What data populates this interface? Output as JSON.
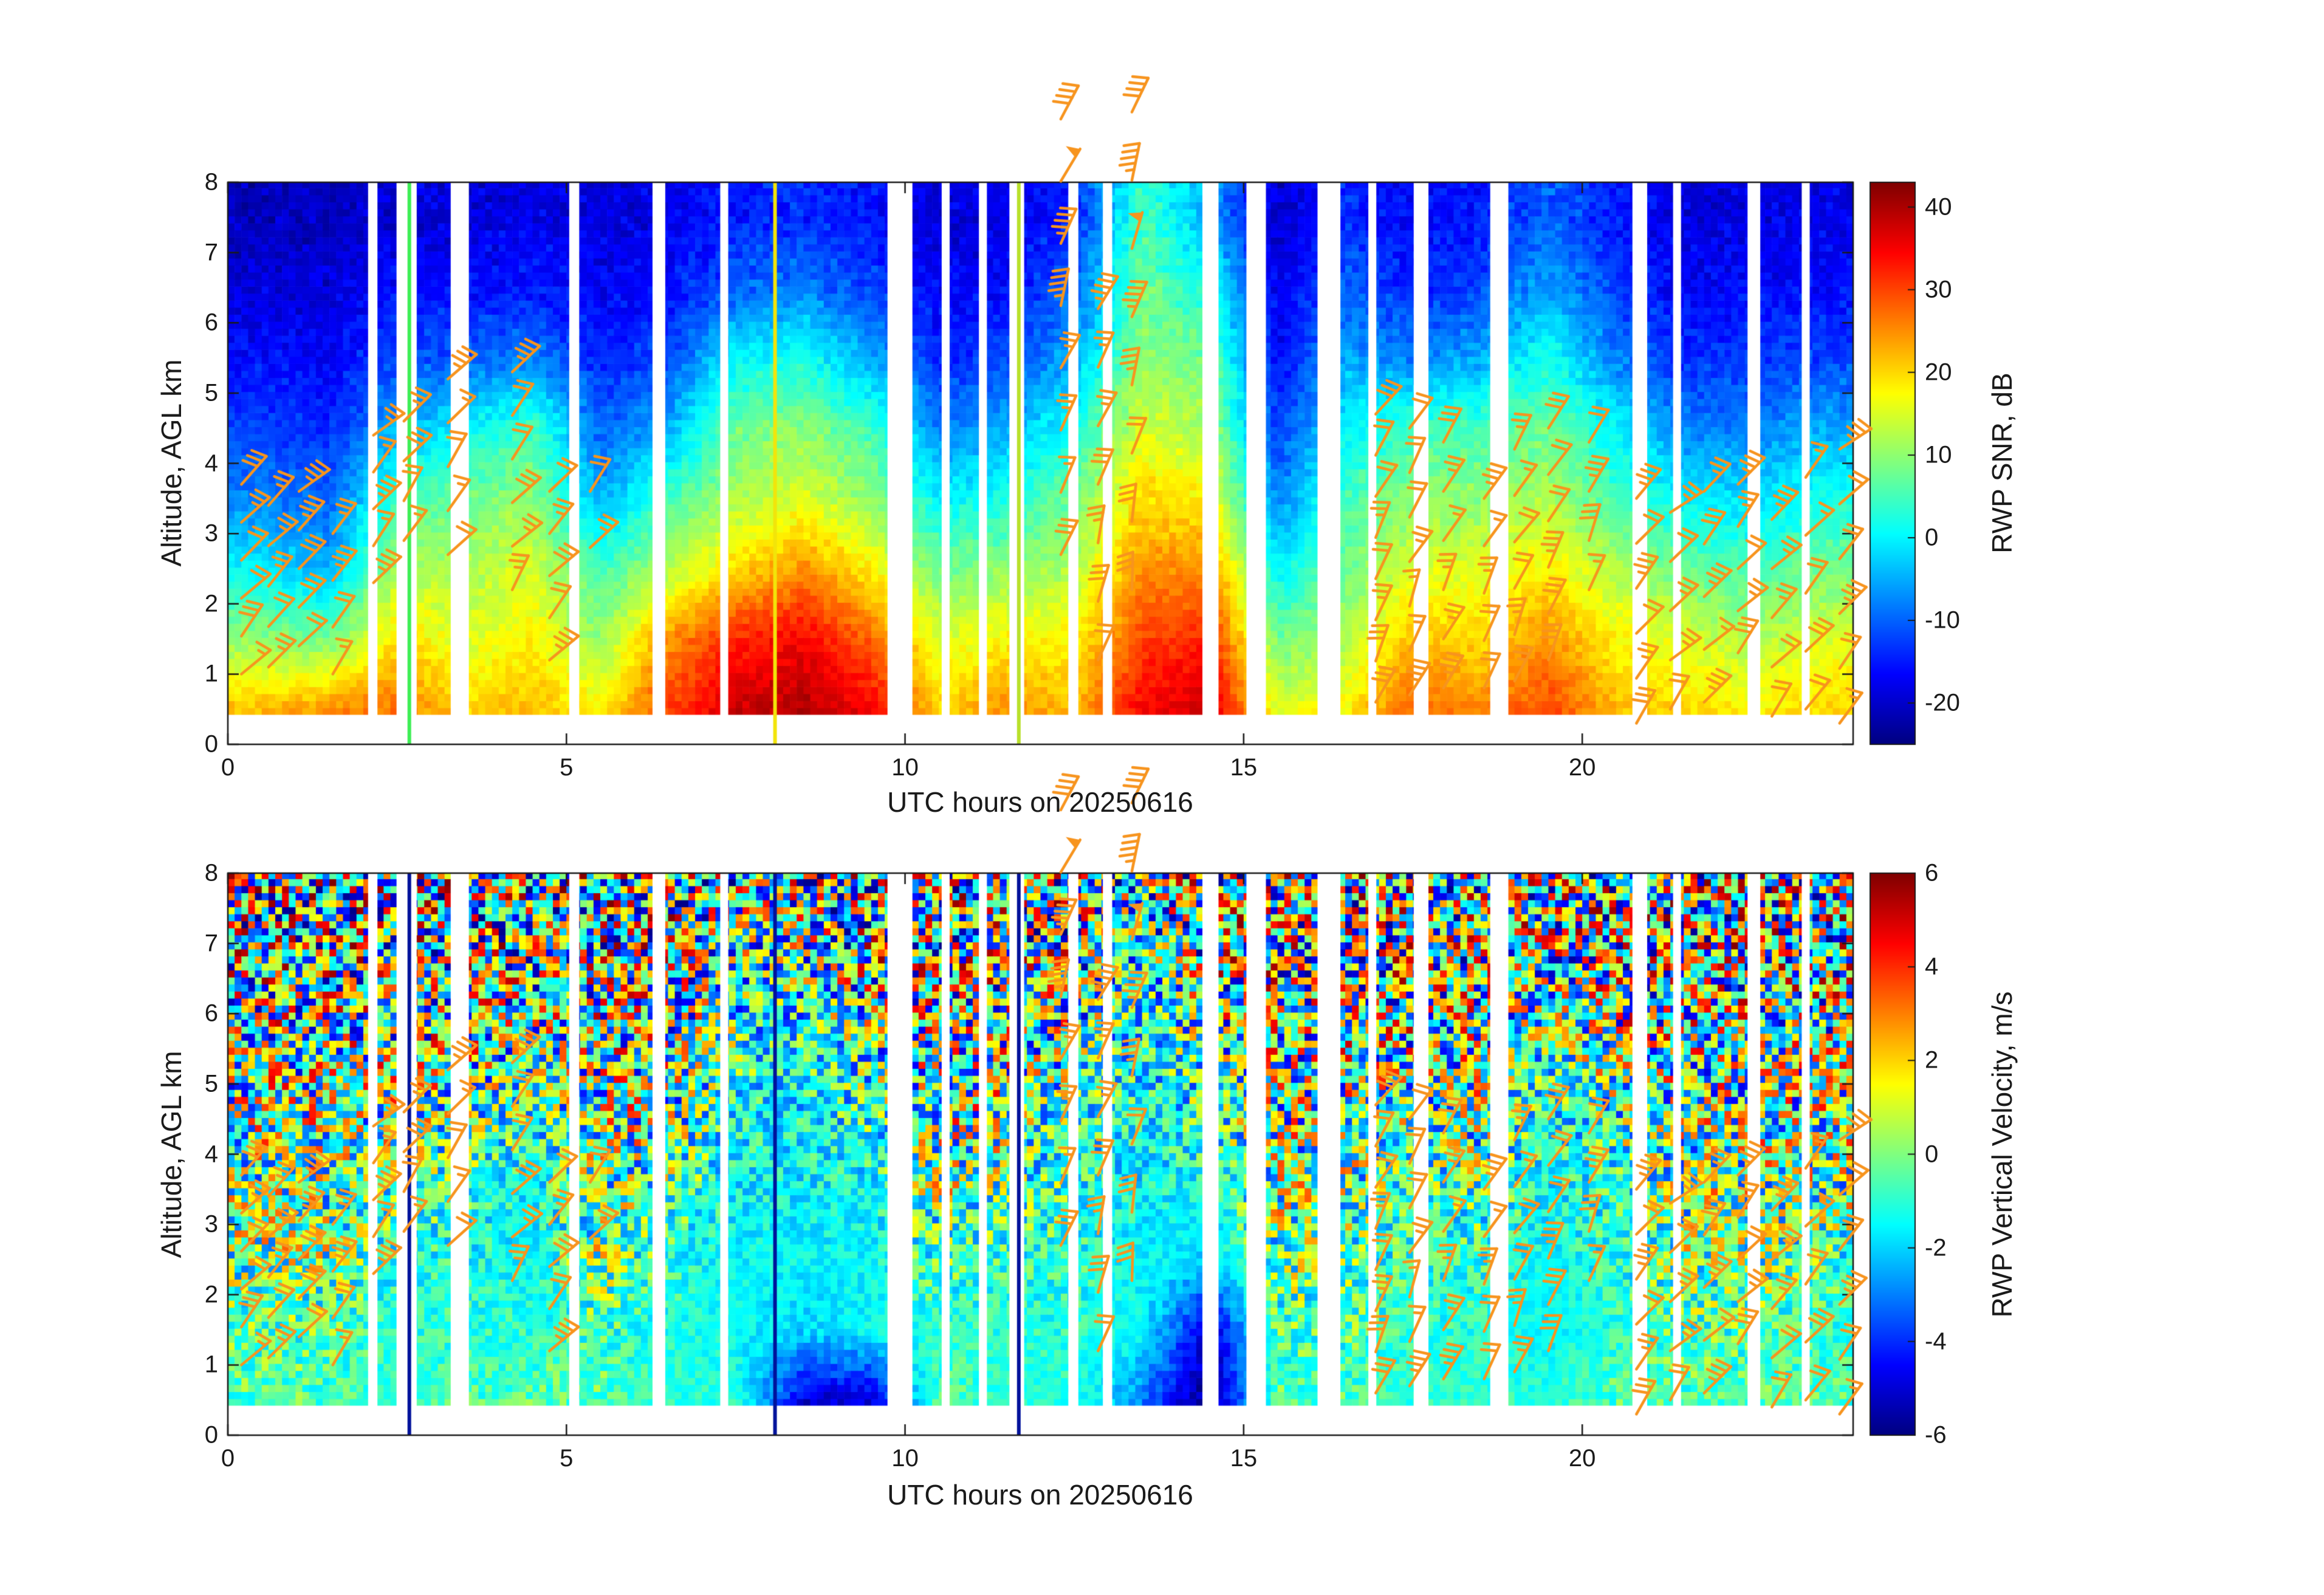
{
  "figure": {
    "date_label": "20250616",
    "background": "#ffffff"
  },
  "colors": {
    "barb": "#f7941e",
    "axis": "#1a1a1a",
    "gap": "#ffffff"
  },
  "panels": [
    {
      "key": "snr",
      "ylabel": "Altitude, AGL km",
      "xlabel": "UTC hours on 20250616",
      "xticks": [
        0,
        5,
        10,
        15,
        20
      ],
      "yticks": [
        0,
        1,
        2,
        3,
        4,
        5,
        6,
        7,
        8
      ],
      "xlim": [
        0,
        24
      ],
      "ylim": [
        0,
        8
      ],
      "colorbar": {
        "label": "RWP SNR, dB",
        "ticks": [
          40,
          30,
          20,
          10,
          0,
          -10,
          -20
        ],
        "clim": [
          -25,
          43
        ]
      }
    },
    {
      "key": "velocity",
      "ylabel": "Altitude, AGL km",
      "xlabel": "UTC hours on 20250616",
      "xticks": [
        0,
        5,
        10,
        15,
        20
      ],
      "yticks": [
        0,
        1,
        2,
        3,
        4,
        5,
        6,
        7,
        8
      ],
      "xlim": [
        0,
        24
      ],
      "ylim": [
        0,
        8
      ],
      "colorbar": {
        "label": "RWP Vertical Velocity, m/s",
        "ticks": [
          6,
          4,
          2,
          0,
          -2,
          -4,
          -6
        ],
        "clim": [
          -6,
          6
        ]
      }
    }
  ],
  "chart_data": [
    {
      "type": "heatmap",
      "name": "RWP SNR",
      "units": "dB",
      "xlabel": "UTC hours on 20250616",
      "ylabel": "Altitude, AGL km",
      "xlim": [
        0,
        24
      ],
      "ylim": [
        0,
        8
      ],
      "clim": [
        -25,
        43
      ],
      "data_alt_min_km": 0.42,
      "x_bin_centers_hours": [
        0.5,
        1.5,
        2.5,
        3.5,
        4.5,
        5.5,
        6.5,
        7.5,
        8.5,
        9.5,
        10.5,
        11.5,
        12.5,
        13.5,
        14.5,
        15.5,
        16.5,
        17.5,
        18.5,
        19.5,
        20.5,
        21.5,
        22.5,
        23.5
      ],
      "y_bin_centers_km": [
        0.5,
        1.5,
        2.5,
        3.5,
        4.5,
        5.5,
        6.5,
        7.5
      ],
      "values": [
        [
          22,
          25,
          27,
          20,
          22,
          18,
          30,
          38,
          40,
          35,
          20,
          25,
          22,
          35,
          38,
          15,
          18,
          28,
          25,
          30,
          22,
          20,
          18,
          20
        ],
        [
          10,
          8,
          20,
          15,
          18,
          10,
          25,
          32,
          35,
          28,
          15,
          18,
          18,
          30,
          32,
          8,
          12,
          22,
          20,
          25,
          18,
          15,
          12,
          15
        ],
        [
          0,
          -5,
          12,
          12,
          15,
          5,
          12,
          20,
          25,
          18,
          8,
          10,
          12,
          25,
          25,
          0,
          8,
          15,
          15,
          18,
          12,
          8,
          5,
          8
        ],
        [
          -8,
          -10,
          5,
          8,
          10,
          -5,
          5,
          12,
          15,
          10,
          0,
          2,
          8,
          20,
          18,
          -8,
          5,
          10,
          10,
          12,
          5,
          0,
          -2,
          2
        ],
        [
          -12,
          -14,
          -5,
          0,
          5,
          -10,
          -5,
          8,
          10,
          5,
          -8,
          -5,
          2,
          15,
          12,
          -12,
          0,
          5,
          5,
          8,
          0,
          -8,
          -8,
          -5
        ],
        [
          -16,
          -17,
          -12,
          -10,
          -8,
          -14,
          -12,
          0,
          2,
          -5,
          -14,
          -12,
          -5,
          10,
          8,
          -16,
          -5,
          -8,
          -5,
          2,
          -8,
          -14,
          -13,
          -12
        ],
        [
          -19,
          -19,
          -16,
          -16,
          -15,
          -17,
          -16,
          -10,
          -8,
          -12,
          -17,
          -16,
          -10,
          8,
          2,
          -18,
          -10,
          -14,
          -12,
          -5,
          -12,
          -17,
          -16,
          -16
        ],
        [
          -21,
          -21,
          -19,
          -19,
          -18,
          -19,
          -18,
          -15,
          -14,
          -16,
          -19,
          -18,
          -14,
          5,
          -5,
          -20,
          -14,
          -17,
          -15,
          -10,
          -15,
          -19,
          -18,
          -18
        ]
      ]
    },
    {
      "type": "heatmap",
      "name": "RWP Vertical Velocity",
      "units": "m/s",
      "xlabel": "UTC hours on 20250616",
      "ylabel": "Altitude, AGL km",
      "xlim": [
        0,
        24
      ],
      "ylim": [
        0,
        8
      ],
      "clim": [
        -6,
        6
      ],
      "data_alt_min_km": 0.42,
      "x_bin_centers_hours": [
        0.5,
        1.5,
        2.5,
        3.5,
        4.5,
        5.5,
        6.5,
        7.5,
        8.5,
        9.5,
        10.5,
        11.5,
        12.5,
        13.5,
        14.5,
        15.5,
        16.5,
        17.5,
        18.5,
        19.5,
        20.5,
        21.5,
        22.5,
        23.5
      ],
      "y_bin_centers_km": [
        0.5,
        1.5,
        2.5,
        3.5,
        4.5,
        5.5,
        6.5,
        7.5
      ],
      "values": [
        [
          -0.5,
          -0.5,
          -1,
          -0.5,
          -0.5,
          -0.5,
          -1,
          -1,
          -5,
          -5,
          -0.5,
          -1,
          -1,
          -3,
          -6,
          -0.5,
          -0.5,
          -1,
          -1,
          -1,
          -0.5,
          -0.5,
          -0.5,
          -0.5
        ],
        [
          -0.5,
          -0.5,
          -1,
          -1,
          -1,
          -0.5,
          -1,
          -1.5,
          -2,
          -1.5,
          -1,
          -1,
          -1,
          -1.5,
          -5,
          -0.5,
          -0.5,
          -1,
          -1,
          -1.5,
          -1,
          -0.5,
          -0.5,
          -1
        ],
        [
          0,
          0,
          -1,
          -1,
          -1.5,
          0,
          -1,
          -1.5,
          -1.5,
          -1.5,
          -0.5,
          -1,
          -1,
          -1.5,
          -2,
          0,
          -0.5,
          -1,
          -1,
          -1.5,
          -1,
          0,
          0,
          -0.5
        ],
        [
          0,
          0,
          -0.5,
          -1,
          -1.5,
          0,
          -0.5,
          -1.5,
          -1.5,
          -1.5,
          0,
          -0.5,
          -1,
          -1.5,
          -1.5,
          0,
          0,
          -1,
          -0.5,
          -1.5,
          -1,
          0,
          0,
          0
        ],
        [
          0,
          0,
          0,
          -0.5,
          -1,
          0,
          0,
          -1.5,
          -1.5,
          -1,
          0,
          0,
          -1,
          -1.5,
          -1,
          0,
          0,
          -0.5,
          0,
          -1.5,
          -0.5,
          0,
          0,
          0
        ],
        [
          0,
          0,
          0,
          0,
          -0.5,
          0,
          0,
          -1,
          -1.5,
          -0.5,
          0,
          0,
          -0.5,
          -1.5,
          -0.5,
          0,
          0,
          0,
          0,
          -1,
          0,
          0,
          0,
          0
        ],
        [
          0,
          0,
          0,
          0,
          0,
          0,
          0,
          -1,
          -1,
          0,
          0,
          0,
          0,
          -1.5,
          0,
          0,
          0,
          0,
          0,
          -0.5,
          0,
          0,
          0,
          0
        ],
        [
          0,
          0,
          0,
          0,
          0,
          0,
          0,
          -0.5,
          -0.5,
          0,
          0,
          0,
          0,
          -1,
          0,
          0,
          0,
          0,
          0,
          0,
          0,
          0,
          0,
          0
        ]
      ]
    }
  ],
  "data_gaps_hours": [
    [
      2.08,
      2.2
    ],
    [
      2.5,
      2.78
    ],
    [
      3.3,
      3.55
    ],
    [
      5.05,
      5.18
    ],
    [
      6.28,
      6.45
    ],
    [
      7.28,
      7.38
    ],
    [
      9.75,
      10.1
    ],
    [
      10.55,
      10.65
    ],
    [
      11.1,
      11.2
    ],
    [
      11.55,
      11.75
    ],
    [
      12.42,
      12.55
    ],
    [
      12.93,
      13.05
    ],
    [
      14.4,
      14.62
    ],
    [
      15.05,
      15.32
    ],
    [
      16.1,
      16.42
    ],
    [
      16.85,
      16.95
    ],
    [
      17.52,
      17.72
    ],
    [
      18.65,
      18.9
    ],
    [
      20.75,
      20.95
    ],
    [
      21.35,
      21.45
    ],
    [
      22.45,
      22.62
    ],
    [
      23.25,
      23.35
    ]
  ],
  "event_lines": {
    "snr": [
      {
        "t": 2.68,
        "color": "#3dee55"
      },
      {
        "t": 8.08,
        "color": "#f2e40a"
      },
      {
        "t": 11.68,
        "color": "#b8e02a"
      }
    ],
    "velocity": [
      {
        "t": 2.68,
        "color": "#00129b"
      },
      {
        "t": 8.08,
        "color": "#00129b"
      },
      {
        "t": 11.68,
        "color": "#00129b"
      }
    ]
  },
  "wind_barbs": {
    "color": "#f7941e",
    "columns": [
      {
        "t": 0.2,
        "a0": 1.0,
        "a1": 3.7,
        "n": 6
      },
      {
        "t": 0.6,
        "a0": 1.1,
        "a1": 3.4,
        "n": 5
      },
      {
        "t": 1.05,
        "a0": 1.4,
        "a1": 3.6,
        "n": 5
      },
      {
        "t": 1.55,
        "a0": 1.0,
        "a1": 3.0,
        "n": 4
      },
      {
        "t": 2.15,
        "a0": 2.3,
        "a1": 4.4,
        "n": 5
      },
      {
        "t": 2.6,
        "a0": 2.9,
        "a1": 4.6,
        "n": 4
      },
      {
        "t": 3.25,
        "a0": 2.7,
        "a1": 5.2,
        "n": 5
      },
      {
        "t": 4.2,
        "a0": 2.2,
        "a1": 5.3,
        "n": 6
      },
      {
        "t": 4.75,
        "a0": 1.2,
        "a1": 3.6,
        "n": 5
      },
      {
        "t": 5.35,
        "a0": 2.8,
        "a1": 3.6,
        "n": 2
      },
      {
        "t": 12.3,
        "a0": 2.7,
        "a1": 8.9,
        "n": 8
      },
      {
        "t": 12.85,
        "a0": 1.2,
        "a1": 6.2,
        "n": 7
      },
      {
        "t": 13.35,
        "a0": 2.2,
        "a1": 9.0,
        "n": 8
      },
      {
        "t": 16.95,
        "a0": 0.6,
        "a1": 4.7,
        "n": 8
      },
      {
        "t": 17.45,
        "a0": 0.7,
        "a1": 4.5,
        "n": 7
      },
      {
        "t": 17.95,
        "a0": 0.8,
        "a1": 4.3,
        "n": 6
      },
      {
        "t": 18.55,
        "a0": 0.8,
        "a1": 3.5,
        "n": 5
      },
      {
        "t": 19.0,
        "a0": 0.9,
        "a1": 4.2,
        "n": 6
      },
      {
        "t": 19.5,
        "a0": 1.2,
        "a1": 4.5,
        "n": 6
      },
      {
        "t": 20.1,
        "a0": 2.2,
        "a1": 4.3,
        "n": 4
      },
      {
        "t": 20.8,
        "a0": 0.3,
        "a1": 3.5,
        "n": 6
      },
      {
        "t": 21.3,
        "a0": 0.5,
        "a1": 3.3,
        "n": 5
      },
      {
        "t": 21.8,
        "a0": 0.6,
        "a1": 3.6,
        "n": 5
      },
      {
        "t": 22.3,
        "a0": 1.3,
        "a1": 3.7,
        "n": 5
      },
      {
        "t": 22.8,
        "a0": 0.4,
        "a1": 3.2,
        "n": 5
      },
      {
        "t": 23.3,
        "a0": 0.5,
        "a1": 3.8,
        "n": 5
      },
      {
        "t": 23.8,
        "a0": 0.3,
        "a1": 4.2,
        "n": 6
      }
    ]
  }
}
